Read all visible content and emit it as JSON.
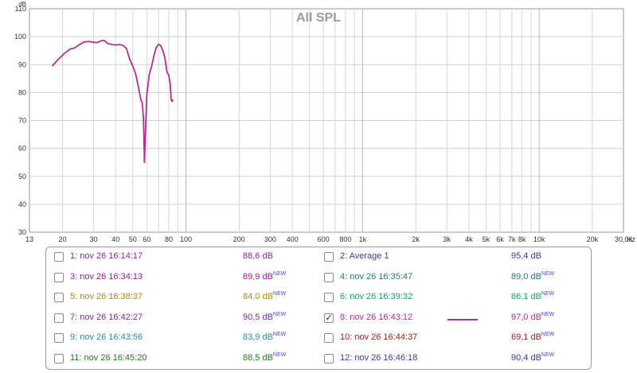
{
  "chart_data": {
    "type": "line",
    "title": "All SPL",
    "ylabel": "dB",
    "xlabel": "Hz",
    "x_scale": "log",
    "xlim": [
      13,
      30000
    ],
    "ylim": [
      30,
      110
    ],
    "y_ticks": [
      30,
      40,
      50,
      60,
      70,
      80,
      90,
      100,
      110
    ],
    "x_ticks": [
      {
        "value": 13,
        "label": "13"
      },
      {
        "value": 20,
        "label": "20"
      },
      {
        "value": 30,
        "label": "30"
      },
      {
        "value": 40,
        "label": "40"
      },
      {
        "value": 50,
        "label": "50"
      },
      {
        "value": 60,
        "label": "60"
      },
      {
        "value": 80,
        "label": "80"
      },
      {
        "value": 100,
        "label": "100"
      },
      {
        "value": 200,
        "label": "200"
      },
      {
        "value": 300,
        "label": "300"
      },
      {
        "value": 400,
        "label": "400"
      },
      {
        "value": 600,
        "label": "600"
      },
      {
        "value": 800,
        "label": "800"
      },
      {
        "value": 1000,
        "label": "1k"
      },
      {
        "value": 2000,
        "label": "2k"
      },
      {
        "value": 3000,
        "label": "3k"
      },
      {
        "value": 4000,
        "label": "4k"
      },
      {
        "value": 5000,
        "label": "5k"
      },
      {
        "value": 6000,
        "label": "6k"
      },
      {
        "value": 7000,
        "label": "7k"
      },
      {
        "value": 8000,
        "label": "8k"
      },
      {
        "value": 10000,
        "label": "10k"
      },
      {
        "value": 20000,
        "label": "20k"
      },
      {
        "value": 30000,
        "label": "30,0k"
      }
    ],
    "grid": true,
    "series": [
      {
        "name": "8: nov 26 16:43:12",
        "color": "#b0308f",
        "points": [
          [
            17.5,
            89.5
          ],
          [
            19,
            92
          ],
          [
            20.5,
            94
          ],
          [
            22,
            95.5
          ],
          [
            23.5,
            96
          ],
          [
            25,
            97.2
          ],
          [
            26.5,
            98.1
          ],
          [
            28,
            98.3
          ],
          [
            30,
            98.0
          ],
          [
            31.5,
            97.9
          ],
          [
            33,
            98.5
          ],
          [
            34.5,
            98.6
          ],
          [
            36,
            97.6
          ],
          [
            38,
            97.2
          ],
          [
            40,
            97.0
          ],
          [
            42,
            97.2
          ],
          [
            44,
            96.9
          ],
          [
            46,
            95.8
          ],
          [
            48,
            92.0
          ],
          [
            50,
            89.5
          ],
          [
            52,
            86.5
          ],
          [
            54,
            81.5
          ],
          [
            55.5,
            77.5
          ],
          [
            56.5,
            76.5
          ],
          [
            57.5,
            70.5
          ],
          [
            58.2,
            55.0
          ],
          [
            59,
            66.0
          ],
          [
            60,
            79.0
          ],
          [
            62,
            86.5
          ],
          [
            64,
            89.5
          ],
          [
            66,
            93.5
          ],
          [
            68,
            96.2
          ],
          [
            70,
            97.3
          ],
          [
            72,
            96.8
          ],
          [
            74,
            95.0
          ],
          [
            76,
            92.5
          ],
          [
            78,
            87.5
          ],
          [
            80,
            86.0
          ],
          [
            81.5,
            83.0
          ],
          [
            82.5,
            77.5
          ],
          [
            83.5,
            76.8
          ],
          [
            84.5,
            77.5
          ]
        ]
      }
    ]
  },
  "legend": {
    "items": [
      {
        "label": "1: nov 26 16:14:17",
        "value": "88,6 dB",
        "is_new": false,
        "checked": false,
        "color": "#8a2a9a"
      },
      {
        "label": "2: Average 1",
        "value": "95,4 dB",
        "is_new": false,
        "checked": false,
        "color": "#3a3aa0"
      },
      {
        "label": "3: nov 26 16:34:13",
        "value": "89,9 dB",
        "is_new": true,
        "checked": false,
        "color": "#9a1e9a"
      },
      {
        "label": "4: nov 26 16:35:47",
        "value": "89,0 dB",
        "is_new": true,
        "checked": false,
        "color": "#1e7a7a"
      },
      {
        "label": "5: nov 26 16:38:37",
        "value": "84,0 dB",
        "is_new": true,
        "checked": false,
        "color": "#a88a1a"
      },
      {
        "label": "6: nov 26 16:39:32",
        "value": "86,1 dB",
        "is_new": true,
        "checked": false,
        "color": "#1e9a6a"
      },
      {
        "label": "7: nov 26 16:42:27",
        "value": "90,5 dB",
        "is_new": true,
        "checked": false,
        "color": "#7a2a9a"
      },
      {
        "label": "8: nov 26 16:43:12",
        "value": "97,0 dB",
        "is_new": true,
        "checked": true,
        "color": "#b0308f"
      },
      {
        "label": "9: nov 26 16:43:56",
        "value": "83,9 dB",
        "is_new": true,
        "checked": false,
        "color": "#2a8aaa"
      },
      {
        "label": "10: nov 26 16:44:37",
        "value": "69,1 dB",
        "is_new": true,
        "checked": false,
        "color": "#a01e1e"
      },
      {
        "label": "11: nov 26 16:45:20",
        "value": "88,5 dB",
        "is_new": true,
        "checked": false,
        "color": "#1e7a1e"
      },
      {
        "label": "12: nov 26 16:46:18",
        "value": "90,4 dB",
        "is_new": true,
        "checked": false,
        "color": "#3a3aa0"
      }
    ],
    "new_label": "NEW",
    "check_mark": "✓"
  }
}
